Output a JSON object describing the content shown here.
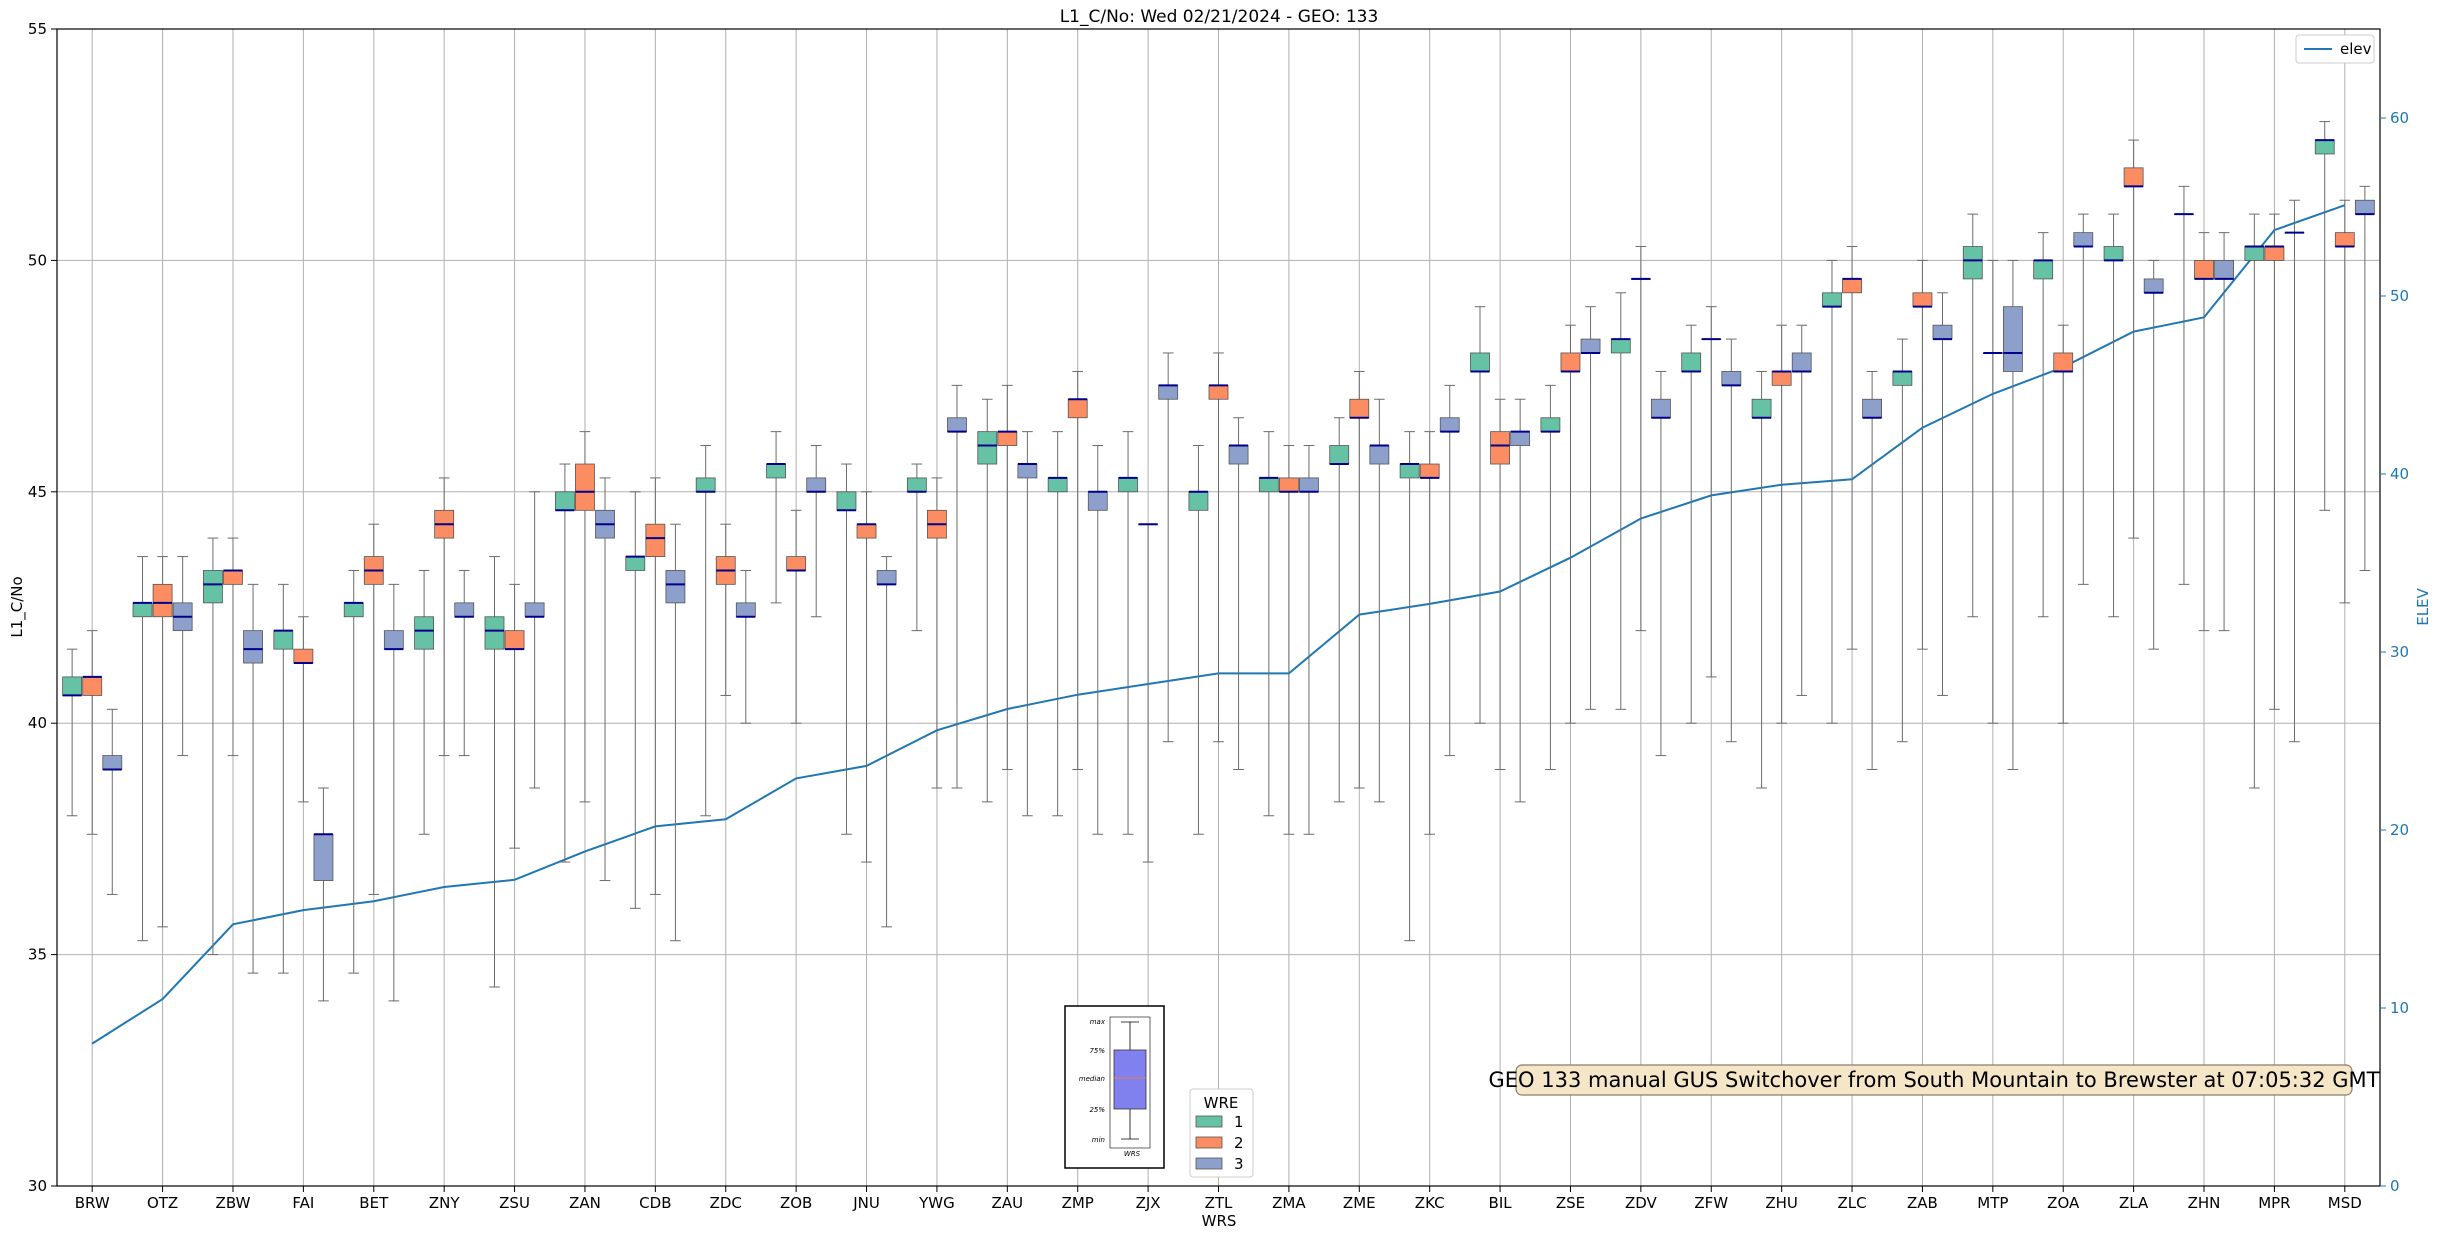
{
  "chart_data": {
    "type": "box",
    "title": "L1_C/No: Wed 02/21/2024 - GEO: 133",
    "xlabel": "WRS",
    "ylabel": "L1_C/No",
    "y2label": "ELEV",
    "ylim": [
      30,
      55
    ],
    "y2lim": [
      0,
      65
    ],
    "yticks": [
      30,
      35,
      40,
      45,
      50,
      55
    ],
    "y2ticks": [
      0,
      10,
      20,
      30,
      40,
      50,
      60
    ],
    "grid": true,
    "colors": {
      "1": "#66c2a5",
      "2": "#fc8d62",
      "3": "#8da0cb",
      "median": "#00008b",
      "elev": "#1f77b4",
      "annotation_bg": "#f5e6c8"
    },
    "categories": [
      "BRW",
      "OTZ",
      "ZBW",
      "FAI",
      "BET",
      "ZNY",
      "ZSU",
      "ZAN",
      "CDB",
      "ZDC",
      "ZOB",
      "JNU",
      "YWG",
      "ZAU",
      "ZMP",
      "ZJX",
      "ZTL",
      "ZMA",
      "ZME",
      "ZKC",
      "BIL",
      "ZSE",
      "ZDV",
      "ZFW",
      "ZHU",
      "ZLC",
      "ZAB",
      "MTP",
      "ZOA",
      "ZLA",
      "ZHN",
      "MPR",
      "MSD"
    ],
    "elev": [
      8,
      10.5,
      14.7,
      15.5,
      16,
      16.8,
      17.2,
      18.8,
      20.2,
      20.6,
      22.9,
      23.6,
      25.6,
      26.8,
      27.6,
      28.2,
      28.8,
      28.8,
      32.1,
      32.7,
      33.4,
      35.3,
      37.5,
      38.8,
      39.4,
      39.7,
      42.6,
      44.5,
      46,
      48,
      48.8,
      53.7,
      55.1
    ],
    "series_legend_title": "WRE",
    "series": [
      {
        "name": "1",
        "boxes": [
          {
            "min": 38,
            "q1": 40.6,
            "median": 40.6,
            "q3": 41,
            "max": 41.6
          },
          {
            "min": 35.3,
            "q1": 42.3,
            "median": 42.6,
            "q3": 42.6,
            "max": 43.6
          },
          {
            "min": 35,
            "q1": 42.6,
            "median": 43,
            "q3": 43.3,
            "max": 44
          },
          {
            "min": 34.6,
            "q1": 41.6,
            "median": 42,
            "q3": 42,
            "max": 43
          },
          {
            "min": 34.6,
            "q1": 42.3,
            "median": 42.6,
            "q3": 42.6,
            "max": 43.3
          },
          {
            "min": 37.6,
            "q1": 41.6,
            "median": 42,
            "q3": 42.3,
            "max": 43.3
          },
          {
            "min": 34.3,
            "q1": 41.6,
            "median": 42,
            "q3": 42.3,
            "max": 43.6
          },
          {
            "min": 37,
            "q1": 44.6,
            "median": 44.6,
            "q3": 45,
            "max": 45.6
          },
          {
            "min": 36,
            "q1": 43.3,
            "median": 43.6,
            "q3": 43.6,
            "max": 45
          },
          {
            "min": 38,
            "q1": 45,
            "median": 45,
            "q3": 45.3,
            "max": 46
          },
          {
            "min": 42.6,
            "q1": 45.3,
            "median": 45.6,
            "q3": 45.6,
            "max": 46.3
          },
          {
            "min": 37.6,
            "q1": 44.6,
            "median": 44.6,
            "q3": 45,
            "max": 45.6
          },
          {
            "min": 42,
            "q1": 45,
            "median": 45,
            "q3": 45.3,
            "max": 45.6
          },
          {
            "min": 38.3,
            "q1": 45.6,
            "median": 46,
            "q3": 46.3,
            "max": 47
          },
          {
            "min": 38,
            "q1": 45,
            "median": 45.3,
            "q3": 45.3,
            "max": 46.3
          },
          {
            "min": 37.6,
            "q1": 45,
            "median": 45.3,
            "q3": 45.3,
            "max": 46.3
          },
          {
            "min": 37.6,
            "q1": 44.6,
            "median": 45,
            "q3": 45,
            "max": 46
          },
          {
            "min": 38,
            "q1": 45,
            "median": 45.3,
            "q3": 45.3,
            "max": 46.3
          },
          {
            "min": 38.3,
            "q1": 45.6,
            "median": 45.6,
            "q3": 46,
            "max": 46.6
          },
          {
            "min": 35.3,
            "q1": 45.3,
            "median": 45.6,
            "q3": 45.6,
            "max": 46.3
          },
          {
            "min": 40,
            "q1": 47.6,
            "median": 47.6,
            "q3": 48,
            "max": 49
          },
          {
            "min": 39,
            "q1": 46.3,
            "median": 46.3,
            "q3": 46.6,
            "max": 47.3
          },
          {
            "min": 40.3,
            "q1": 48,
            "median": 48.3,
            "q3": 48.3,
            "max": 49.3
          },
          {
            "min": 40,
            "q1": 47.6,
            "median": 47.6,
            "q3": 48,
            "max": 48.6
          },
          {
            "min": 38.6,
            "q1": 46.6,
            "median": 46.6,
            "q3": 47,
            "max": 47.6
          },
          {
            "min": 40,
            "q1": 49,
            "median": 49,
            "q3": 49.3,
            "max": 50
          },
          {
            "min": 39.6,
            "q1": 47.3,
            "median": 47.6,
            "q3": 47.6,
            "max": 48.3
          },
          {
            "min": 42.3,
            "q1": 49.6,
            "median": 50,
            "q3": 50.3,
            "max": 51
          },
          {
            "min": 42.3,
            "q1": 49.6,
            "median": 50,
            "q3": 50,
            "max": 50.6
          },
          {
            "min": 42.3,
            "q1": 50,
            "median": 50,
            "q3": 50.3,
            "max": 51
          },
          {
            "min": 43,
            "q1": 51,
            "median": 51,
            "q3": 51,
            "max": 51.6
          },
          {
            "min": 38.6,
            "q1": 50,
            "median": 50.3,
            "q3": 50.3,
            "max": 51
          },
          {
            "min": 44.6,
            "q1": 52.3,
            "median": 52.6,
            "q3": 52.6,
            "max": 53
          }
        ]
      },
      {
        "name": "2",
        "boxes": [
          {
            "min": 37.6,
            "q1": 40.6,
            "median": 41,
            "q3": 41,
            "max": 42
          },
          {
            "min": 35.6,
            "q1": 42.3,
            "median": 42.6,
            "q3": 43,
            "max": 43.6
          },
          {
            "min": 39.3,
            "q1": 43,
            "median": 43.3,
            "q3": 43.3,
            "max": 44
          },
          {
            "min": 38.3,
            "q1": 41.3,
            "median": 41.3,
            "q3": 41.6,
            "max": 42.3
          },
          {
            "min": 36.3,
            "q1": 43,
            "median": 43.3,
            "q3": 43.6,
            "max": 44.3
          },
          {
            "min": 39.3,
            "q1": 44,
            "median": 44.3,
            "q3": 44.6,
            "max": 45.3
          },
          {
            "min": 37.3,
            "q1": 41.6,
            "median": 41.6,
            "q3": 42,
            "max": 43
          },
          {
            "min": 38.3,
            "q1": 44.6,
            "median": 45,
            "q3": 45.6,
            "max": 46.3
          },
          {
            "min": 36.3,
            "q1": 43.6,
            "median": 44,
            "q3": 44.3,
            "max": 45.3
          },
          {
            "min": 40.6,
            "q1": 43,
            "median": 43.3,
            "q3": 43.6,
            "max": 44.3
          },
          {
            "min": 40,
            "q1": 43.3,
            "median": 43.3,
            "q3": 43.6,
            "max": 44.6
          },
          {
            "min": 37,
            "q1": 44,
            "median": 44.3,
            "q3": 44.3,
            "max": 45
          },
          {
            "min": 38.6,
            "q1": 44,
            "median": 44.3,
            "q3": 44.6,
            "max": 45.3
          },
          {
            "min": 39,
            "q1": 46,
            "median": 46.3,
            "q3": 46.3,
            "max": 47.3
          },
          {
            "min": 39,
            "q1": 46.6,
            "median": 47,
            "q3": 47,
            "max": 47.6
          },
          {
            "min": 37,
            "q1": 44.3,
            "median": 44.3,
            "q3": 44.3,
            "max": 44.3
          },
          {
            "min": 39.6,
            "q1": 47,
            "median": 47.3,
            "q3": 47.3,
            "max": 48
          },
          {
            "min": 37.6,
            "q1": 45,
            "median": 45,
            "q3": 45.3,
            "max": 46
          },
          {
            "min": 38.6,
            "q1": 46.6,
            "median": 46.6,
            "q3": 47,
            "max": 47.6
          },
          {
            "min": 37.6,
            "q1": 45.3,
            "median": 45.3,
            "q3": 45.6,
            "max": 46.3
          },
          {
            "min": 39,
            "q1": 45.6,
            "median": 46,
            "q3": 46.3,
            "max": 47
          },
          {
            "min": 40,
            "q1": 47.6,
            "median": 47.6,
            "q3": 48,
            "max": 48.6
          },
          {
            "min": 42,
            "q1": 49.6,
            "median": 49.6,
            "q3": 49.6,
            "max": 50.3
          },
          {
            "min": 41,
            "q1": 48.3,
            "median": 48.3,
            "q3": 48.3,
            "max": 49
          },
          {
            "min": 40,
            "q1": 47.3,
            "median": 47.6,
            "q3": 47.6,
            "max": 48.6
          },
          {
            "min": 41.6,
            "q1": 49.3,
            "median": 49.6,
            "q3": 49.6,
            "max": 50.3
          },
          {
            "min": 41.6,
            "q1": 49,
            "median": 49,
            "q3": 49.3,
            "max": 50
          },
          {
            "min": 40,
            "q1": 48,
            "median": 48,
            "q3": 48,
            "max": 50
          },
          {
            "min": 40,
            "q1": 47.6,
            "median": 47.6,
            "q3": 48,
            "max": 48.6
          },
          {
            "min": 44,
            "q1": 51.6,
            "median": 51.6,
            "q3": 52,
            "max": 52.6
          },
          {
            "min": 42,
            "q1": 49.6,
            "median": 49.6,
            "q3": 50,
            "max": 50.6
          },
          {
            "min": 40.3,
            "q1": 50,
            "median": 50.3,
            "q3": 50.3,
            "max": 51
          },
          {
            "min": 42.6,
            "q1": 50.3,
            "median": 50.3,
            "q3": 50.6,
            "max": 51.3
          }
        ]
      },
      {
        "name": "3",
        "boxes": [
          {
            "min": 36.3,
            "q1": 39,
            "median": 39,
            "q3": 39.3,
            "max": 40.3
          },
          {
            "min": 39.3,
            "q1": 42,
            "median": 42.3,
            "q3": 42.6,
            "max": 43.6
          },
          {
            "min": 34.6,
            "q1": 41.3,
            "median": 41.6,
            "q3": 42,
            "max": 43
          },
          {
            "min": 34,
            "q1": 36.6,
            "median": 37.6,
            "q3": 37.6,
            "max": 38.6
          },
          {
            "min": 34,
            "q1": 41.6,
            "median": 41.6,
            "q3": 42,
            "max": 43
          },
          {
            "min": 39.3,
            "q1": 42.3,
            "median": 42.3,
            "q3": 42.6,
            "max": 43.3
          },
          {
            "min": 38.6,
            "q1": 42.3,
            "median": 42.3,
            "q3": 42.6,
            "max": 45
          },
          {
            "min": 36.6,
            "q1": 44,
            "median": 44.3,
            "q3": 44.6,
            "max": 45.3
          },
          {
            "min": 35.3,
            "q1": 42.6,
            "median": 43,
            "q3": 43.3,
            "max": 44.3
          },
          {
            "min": 40,
            "q1": 42.3,
            "median": 42.3,
            "q3": 42.6,
            "max": 43.3
          },
          {
            "min": 42.3,
            "q1": 45,
            "median": 45,
            "q3": 45.3,
            "max": 46
          },
          {
            "min": 35.6,
            "q1": 43,
            "median": 43,
            "q3": 43.3,
            "max": 43.6
          },
          {
            "min": 38.6,
            "q1": 46.3,
            "median": 46.3,
            "q3": 46.6,
            "max": 47.3
          },
          {
            "min": 38,
            "q1": 45.3,
            "median": 45.6,
            "q3": 45.6,
            "max": 46.3
          },
          {
            "min": 37.6,
            "q1": 44.6,
            "median": 45,
            "q3": 45,
            "max": 46
          },
          {
            "min": 39.6,
            "q1": 47,
            "median": 47.3,
            "q3": 47.3,
            "max": 48
          },
          {
            "min": 39,
            "q1": 45.6,
            "median": 46,
            "q3": 46,
            "max": 46.6
          },
          {
            "min": 37.6,
            "q1": 45,
            "median": 45,
            "q3": 45.3,
            "max": 46
          },
          {
            "min": 38.3,
            "q1": 45.6,
            "median": 46,
            "q3": 46,
            "max": 47
          },
          {
            "min": 39.3,
            "q1": 46.3,
            "median": 46.3,
            "q3": 46.6,
            "max": 47.3
          },
          {
            "min": 38.3,
            "q1": 46,
            "median": 46.3,
            "q3": 46.3,
            "max": 47
          },
          {
            "min": 40.3,
            "q1": 48,
            "median": 48,
            "q3": 48.3,
            "max": 49
          },
          {
            "min": 39.3,
            "q1": 46.6,
            "median": 46.6,
            "q3": 47,
            "max": 47.6
          },
          {
            "min": 39.6,
            "q1": 47.3,
            "median": 47.3,
            "q3": 47.6,
            "max": 48.3
          },
          {
            "min": 40.6,
            "q1": 47.6,
            "median": 47.6,
            "q3": 48,
            "max": 48.6
          },
          {
            "min": 39,
            "q1": 46.6,
            "median": 46.6,
            "q3": 47,
            "max": 47.6
          },
          {
            "min": 40.6,
            "q1": 48.3,
            "median": 48.3,
            "q3": 48.6,
            "max": 49.3
          },
          {
            "min": 39,
            "q1": 47.6,
            "median": 48,
            "q3": 49,
            "max": 50
          },
          {
            "min": 43,
            "q1": 50.3,
            "median": 50.3,
            "q3": 50.6,
            "max": 51
          },
          {
            "min": 41.6,
            "q1": 49.3,
            "median": 49.3,
            "q3": 49.6,
            "max": 50
          },
          {
            "min": 42,
            "q1": 49.6,
            "median": 49.6,
            "q3": 50,
            "max": 50.6
          },
          {
            "min": 39.6,
            "q1": 50.6,
            "median": 50.6,
            "q3": 50.6,
            "max": 51.3
          },
          {
            "min": 43.3,
            "q1": 51,
            "median": 51,
            "q3": 51.3,
            "max": 51.6
          }
        ]
      }
    ],
    "elev_legend": "elev",
    "legend_placement": "top-right",
    "series_legend_placement": "bottom-center",
    "annotation": "GEO 133 manual GUS Switchover from South Mountain to Brewster at 07:05:32 GMT",
    "key_labels": [
      "max",
      "75%",
      "median",
      "25%",
      "min",
      "WRS"
    ]
  }
}
